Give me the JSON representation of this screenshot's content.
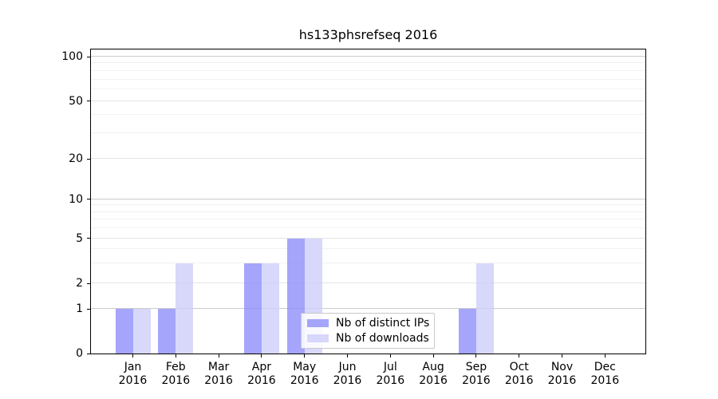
{
  "chart_data": {
    "type": "bar",
    "title": "hs133phsrefseq 2016",
    "year_label": "2016",
    "categories": [
      "Jan",
      "Feb",
      "Mar",
      "Apr",
      "May",
      "Jun",
      "Jul",
      "Aug",
      "Sep",
      "Oct",
      "Nov",
      "Dec"
    ],
    "series": [
      {
        "name": "Nb of distinct IPs",
        "color": "rgba(140,140,250,0.78)",
        "values": [
          1,
          1,
          0,
          3,
          5,
          0,
          0,
          0,
          1,
          0,
          0,
          0
        ]
      },
      {
        "name": "Nb of downloads",
        "color": "rgba(206,206,250,0.80)",
        "values": [
          1,
          3,
          0,
          3,
          5,
          0,
          0,
          0,
          3,
          0,
          0,
          0
        ]
      }
    ],
    "y_axis": {
      "scale": "log (with 0 baseline)",
      "ticks": [
        0,
        1,
        2,
        5,
        10,
        20,
        50,
        100
      ],
      "minor_ticks": [
        3,
        4,
        6,
        7,
        8,
        9,
        30,
        40,
        60,
        70,
        80,
        90
      ],
      "ylim": [
        0,
        110
      ]
    },
    "x_axis": {
      "tick_label_lines": 2
    },
    "grid": "horizontal",
    "legend": {
      "position": "inside bottom-center",
      "entries": [
        "Nb of distinct IPs",
        "Nb of downloads"
      ]
    }
  },
  "colors": {
    "background": "#ffffff",
    "spine": "#000000",
    "grid_decade": "#cbcbcb",
    "grid_sub": "#e4e4e4",
    "grid_minor": "#f2f2f2",
    "bar_dark": "rgba(140,140,250,0.78)",
    "bar_light": "rgba(206,206,250,0.80)"
  }
}
